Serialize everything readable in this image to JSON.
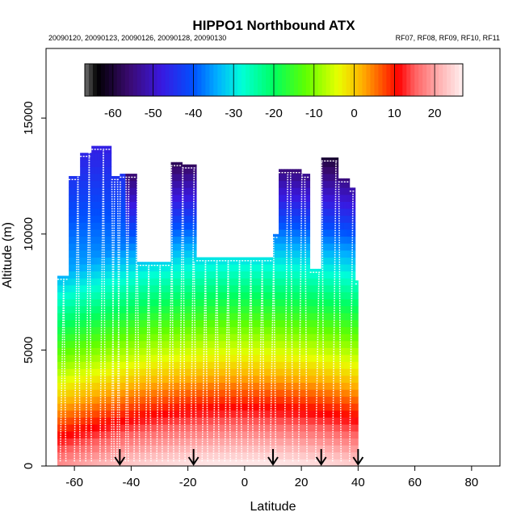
{
  "chart_data": {
    "type": "heatmap",
    "title": "HIPPO1 Northbound ATX",
    "subtitle_left": "20090120, 20090123, 20090126, 20090128, 20090130",
    "subtitle_right": "RF07, RF08, RF09, RF10, RF11",
    "xlabel": "Latitude",
    "ylabel": "Altitude (m)",
    "xlim": [
      -70,
      90
    ],
    "ylim": [
      0,
      18000
    ],
    "x_ticks": [
      -60,
      -40,
      -20,
      0,
      20,
      40,
      60,
      80
    ],
    "y_ticks": [
      0,
      5000,
      10000,
      15000
    ],
    "colorbar": {
      "range": [
        -67,
        27
      ],
      "ticks": [
        -60,
        -50,
        -40,
        -30,
        -20,
        -10,
        0,
        10,
        20
      ],
      "stops": [
        {
          "v": -67,
          "c": "#6e6e6e"
        },
        {
          "v": -64,
          "c": "#000000"
        },
        {
          "v": -56,
          "c": "#3a0a70"
        },
        {
          "v": -48,
          "c": "#3a18e0"
        },
        {
          "v": -40,
          "c": "#0050ff"
        },
        {
          "v": -34,
          "c": "#00b0ff"
        },
        {
          "v": -28,
          "c": "#00ffd8"
        },
        {
          "v": -20,
          "c": "#00ff60"
        },
        {
          "v": -12,
          "c": "#60ff00"
        },
        {
          "v": -4,
          "c": "#e8ff00"
        },
        {
          "v": 2,
          "c": "#ffb000"
        },
        {
          "v": 7,
          "c": "#ff5000"
        },
        {
          "v": 11,
          "c": "#ff0000"
        },
        {
          "v": 15,
          "c": "#ff6060"
        },
        {
          "v": 21,
          "c": "#ffb0b0"
        },
        {
          "v": 27,
          "c": "#fff0f0"
        }
      ]
    },
    "coverage_columns": [
      {
        "lat0": -66,
        "lat1": -62,
        "top": 8200
      },
      {
        "lat0": -62,
        "lat1": -58,
        "top": 12500
      },
      {
        "lat0": -58,
        "lat1": -54,
        "top": 13500
      },
      {
        "lat0": -54,
        "lat1": -47,
        "top": 13800
      },
      {
        "lat0": -47,
        "lat1": -44,
        "top": 12500
      },
      {
        "lat0": -44,
        "lat1": -38,
        "top": 12600
      },
      {
        "lat0": -38,
        "lat1": -26,
        "top": 8800
      },
      {
        "lat0": -26,
        "lat1": -22,
        "top": 13100
      },
      {
        "lat0": -22,
        "lat1": -17,
        "top": 13000
      },
      {
        "lat0": -17,
        "lat1": 10,
        "top": 9000
      },
      {
        "lat0": 10,
        "lat1": 12,
        "top": 10000
      },
      {
        "lat0": 12,
        "lat1": 20,
        "top": 12800
      },
      {
        "lat0": 20,
        "lat1": 23,
        "top": 12600
      },
      {
        "lat0": 23,
        "lat1": 27,
        "top": 8500
      },
      {
        "lat0": 27,
        "lat1": 33,
        "top": 13300
      },
      {
        "lat0": 33,
        "lat1": 37,
        "top": 12400
      },
      {
        "lat0": 37,
        "lat1": 39,
        "top": 12000
      },
      {
        "lat0": 39,
        "lat1": 40,
        "top": 8000
      }
    ],
    "flight_track_latitudes": [
      -65,
      -63,
      -60,
      -58,
      -56,
      -54,
      -51,
      -49,
      -47,
      -46,
      -45,
      -44,
      -42,
      -41,
      -39,
      -37,
      -35,
      -33,
      -31,
      -29,
      -27,
      -25,
      -23,
      -21,
      -19,
      -17,
      -15,
      -13,
      -11,
      -9,
      -7,
      -5,
      -3,
      -1,
      1,
      3,
      5,
      7,
      9,
      11,
      14,
      17,
      19,
      22,
      25,
      28,
      31,
      34,
      37
    ],
    "profile_arrows": [
      -44,
      -18,
      10,
      27,
      40
    ],
    "bottom_fade_altitude": 1500
  }
}
